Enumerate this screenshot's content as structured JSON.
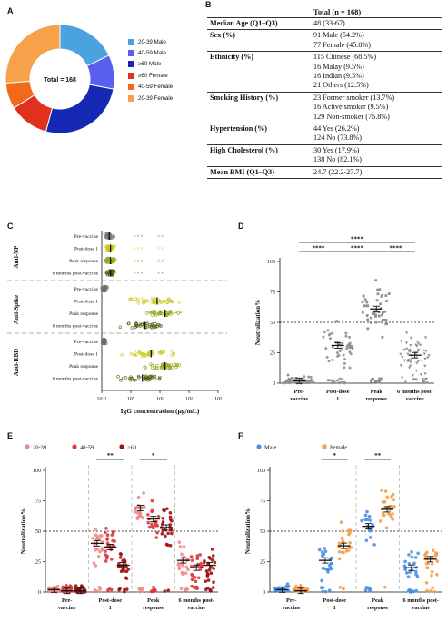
{
  "panels": {
    "A": "A",
    "B": "B",
    "C": "C",
    "D": "D",
    "E": "E",
    "F": "F"
  },
  "donut": {
    "center_label": "Total = 168",
    "colors": [
      "#4aa3df",
      "#5b5ff0",
      "#1428b4",
      "#e0301e",
      "#f06a1a",
      "#f5a24a"
    ]
  },
  "table": {
    "header": "Total (n = 168)",
    "rows": [
      {
        "label": "Median Age (Q1–Q3)",
        "values": [
          "48 (33-67)"
        ]
      },
      {
        "label": "Sex (%)",
        "values": [
          "91 Male (54.2%)",
          "77 Female (45.8%)"
        ]
      },
      {
        "label": "Ethnicity (%)",
        "values": [
          "115 Chinese (68.5%)",
          "16 Malay (9.5%)",
          "16 Indian (9.5%)",
          "21 Others (12.5%)"
        ]
      },
      {
        "label": "Smoking History (%)",
        "values": [
          "23 Former smoker (13.7%)",
          "16 Active smoker (9.5%)",
          "129 Non-smoker (76.8%)"
        ]
      },
      {
        "label": "Hypertension (%)",
        "values": [
          "44 Yes (26.2%)",
          "124 No (73.8%)"
        ]
      },
      {
        "label": "High Cholesterol (%)",
        "values": [
          "30 Yes (17.9%)",
          "138 No (82.1%)"
        ]
      },
      {
        "label": "Mean BMI (Q1–Q3)",
        "values": [
          "24.7 (22.2-27.7)"
        ]
      }
    ]
  },
  "panelC": {
    "groups": [
      "Anti-NP",
      "Anti-Spike",
      "Anti-RBD"
    ],
    "rows": [
      "Pre-vaccine",
      "Post-dose 1",
      "Peak response",
      "6 months post-vaccine"
    ],
    "colors": [
      "#777777",
      "#c8c81e",
      "#98a81e",
      "#5a6014"
    ],
    "xlabel": "IgG concentration (µg/mL)",
    "xticks": [
      "10⁻¹",
      "10⁰",
      "10¹",
      "10²",
      "10³"
    ]
  },
  "panelD": {
    "ylabel": "Neutralization%",
    "yticks": [
      "0",
      "25",
      "50",
      "75",
      "100"
    ],
    "categories": [
      [
        "Pre-",
        "vaccine"
      ],
      [
        "Post-dose",
        "1"
      ],
      [
        "Peak",
        "response"
      ],
      [
        "6 months post-",
        "vaccine"
      ]
    ],
    "colors": [
      "#909090",
      "#b8d818",
      "#50c030",
      "#1f7a1f"
    ],
    "sig": [
      "****",
      "****",
      "****",
      "****"
    ]
  },
  "panelE": {
    "ylabel": "Neutralization%",
    "yticks": [
      "0",
      "25",
      "50",
      "75",
      "100"
    ],
    "legend": [
      "20-39",
      "40-59",
      "≥60"
    ],
    "colors": [
      "#f08a8a",
      "#dc3a3a",
      "#a01010"
    ],
    "categories": [
      [
        "Pre-",
        "vaccine"
      ],
      [
        "Post-dose",
        "1"
      ],
      [
        "Peak",
        "response"
      ],
      [
        "6 months post-",
        "vaccine"
      ]
    ],
    "sig": [
      "**",
      "*"
    ]
  },
  "panelF": {
    "ylabel": "Neutralization%",
    "yticks": [
      "0",
      "25",
      "50",
      "75",
      "100"
    ],
    "legend": [
      "Male",
      "Female"
    ],
    "colors": [
      "#4a90e2",
      "#f5a04a"
    ],
    "categories": [
      [
        "Pre-",
        "vaccine"
      ],
      [
        "Post-dose",
        "1"
      ],
      [
        "Peak",
        "response"
      ],
      [
        "6 months post-",
        "vaccine"
      ]
    ],
    "sig": [
      "*",
      "**"
    ]
  },
  "chart_data": [
    {
      "type": "pie",
      "title": "",
      "categories": [
        "20-39 Male",
        "40-59 Male",
        "≥60 Male",
        "≥60 Female",
        "40-59 Female",
        "20-39 Female"
      ],
      "values": [
        30,
        17,
        44,
        20,
        13,
        44
      ]
    },
    {
      "type": "scatter",
      "title": "",
      "ylabel": "Neutralization%",
      "categories": [
        "Pre-vaccine",
        "Post-dose 1",
        "Peak response",
        "6 months post-vaccine"
      ],
      "series": [
        {
          "values": [
            2,
            31,
            61,
            23
          ]
        }
      ],
      "ylim": [
        0,
        100
      ],
      "reference_line": 50
    },
    {
      "type": "scatter",
      "title": "",
      "ylabel": "Neutralization%",
      "categories": [
        "Pre-vaccine",
        "Post-dose 1",
        "Peak response",
        "6 months post-vaccine"
      ],
      "series": [
        {
          "name": "20-39",
          "values": [
            2,
            40,
            69,
            26
          ]
        },
        {
          "name": "40-59",
          "values": [
            1,
            37,
            60,
            20
          ]
        },
        {
          "name": "≥60",
          "values": [
            1,
            22,
            53,
            22
          ]
        }
      ],
      "ylim": [
        0,
        100
      ],
      "reference_line": 50
    },
    {
      "type": "scatter",
      "title": "",
      "ylabel": "Neutralization%",
      "categories": [
        "Pre-vaccine",
        "Post-dose 1",
        "Peak response",
        "6 months post-vaccine"
      ],
      "series": [
        {
          "name": "Male",
          "values": [
            2,
            26,
            54,
            20
          ]
        },
        {
          "name": "Female",
          "values": [
            1,
            38,
            68,
            27
          ]
        }
      ],
      "ylim": [
        0,
        100
      ],
      "reference_line": 50
    }
  ]
}
